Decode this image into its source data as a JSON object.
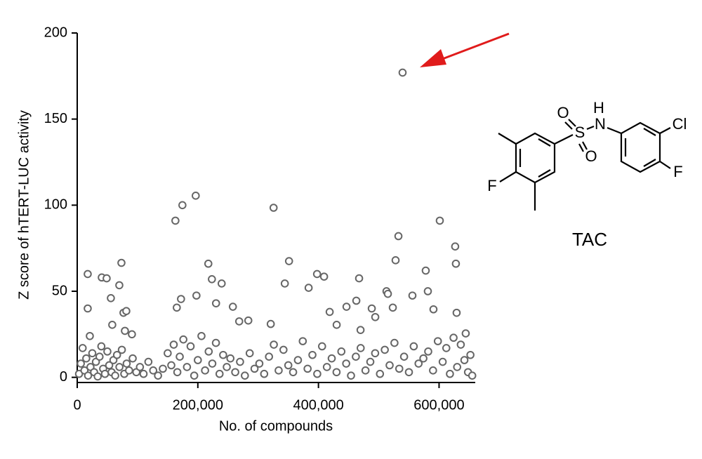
{
  "chart_data": {
    "type": "scatter",
    "xlabel": "No. of compounds",
    "ylabel": "Z score of hTERT-LUC activity",
    "xlim": [
      0,
      660000
    ],
    "ylim": [
      -3,
      200
    ],
    "xticks": [
      0,
      {
        "value": 200000,
        "label": "200,000"
      },
      {
        "value": 400000,
        "label": "400,000"
      },
      {
        "value": 600000,
        "label": "600,000"
      }
    ],
    "yticks": [
      0,
      50,
      100,
      150,
      200
    ],
    "color": "#666666",
    "x": [
      17400,
      17400,
      20900,
      40700,
      48800,
      55800,
      58100,
      69800,
      73300,
      76700,
      81400,
      79100,
      90700,
      162800,
      165100,
      174400,
      172100,
      196500,
      197700,
      217400,
      223300,
      230200,
      239500,
      258100,
      268600,
      283700,
      325600,
      320900,
      344200,
      351200,
      383700,
      397700,
      409300,
      418600,
      430200,
      446500,
      462800,
      467400,
      469800,
      488400,
      494200,
      512800,
      515100,
      523300,
      527900,
      532600,
      539500,
      555800,
      577900,
      581400,
      590700,
      601200,
      626700,
      627900,
      629100,
      644200,
      3000,
      6000,
      9000,
      12000,
      15000,
      18000,
      22000,
      25000,
      28000,
      31000,
      34000,
      37000,
      40000,
      43000,
      46000,
      50000,
      53000,
      57000,
      60000,
      63000,
      66000,
      70000,
      74000,
      78000,
      82000,
      86000,
      92000,
      98000,
      104000,
      110000,
      118000,
      126000,
      134000,
      142000,
      150000,
      156000,
      160000,
      166000,
      170000,
      176000,
      182000,
      188000,
      194000,
      200000,
      206000,
      212000,
      218000,
      224000,
      230000,
      236000,
      242000,
      248000,
      254000,
      262000,
      270000,
      278000,
      286000,
      294000,
      302000,
      310000,
      318000,
      326000,
      334000,
      342000,
      350000,
      358000,
      366000,
      374000,
      382000,
      390000,
      398000,
      406000,
      414000,
      422000,
      430000,
      438000,
      446000,
      454000,
      462000,
      470000,
      478000,
      486000,
      494000,
      502000,
      510000,
      518000,
      526000,
      534000,
      542000,
      550000,
      558000,
      566000,
      574000,
      582000,
      590000,
      598000,
      606000,
      612000,
      618000,
      624000,
      630000,
      636000,
      642000,
      648000,
      652000,
      655000
    ],
    "values": [
      60,
      40,
      24,
      58,
      57.5,
      46,
      30.5,
      53.5,
      66.5,
      37.5,
      38.5,
      27,
      25,
      91,
      40.5,
      100,
      45.5,
      105.5,
      47.5,
      66,
      57,
      43,
      54.5,
      41,
      32.5,
      33,
      98.5,
      31,
      54.5,
      67.5,
      52,
      60,
      58.5,
      38,
      30.5,
      41,
      44.5,
      57.5,
      27.5,
      40,
      35,
      50,
      48.5,
      40.5,
      68,
      82,
      177,
      47.5,
      62,
      50,
      39.5,
      91,
      76,
      66,
      37.5,
      25.5,
      2,
      8,
      17,
      4,
      11,
      1,
      6,
      14,
      3,
      9,
      0.5,
      12,
      18,
      5,
      2,
      15,
      7,
      3,
      10,
      1,
      13,
      6,
      16,
      2,
      8,
      4,
      11,
      3,
      6,
      2,
      9,
      4,
      1,
      5,
      14,
      7,
      19,
      3,
      12,
      22,
      6,
      18,
      1,
      10,
      24,
      4,
      15,
      8,
      20,
      2,
      13,
      6,
      11,
      3,
      9,
      1,
      14,
      5,
      8,
      2,
      12,
      19,
      4,
      16,
      7,
      3,
      10,
      21,
      5,
      13,
      2,
      18,
      6,
      11,
      3,
      15,
      8,
      1,
      12,
      17,
      4,
      9,
      14,
      2,
      16,
      7,
      20,
      5,
      12,
      3,
      18,
      8,
      11,
      15,
      4,
      21,
      9,
      17,
      2,
      23,
      6,
      19,
      10,
      3,
      13,
      1
    ],
    "structure_label": "TAC",
    "atom_labels": [
      "S",
      "O",
      "O",
      "N",
      "H",
      "Cl",
      "F",
      "F"
    ]
  }
}
